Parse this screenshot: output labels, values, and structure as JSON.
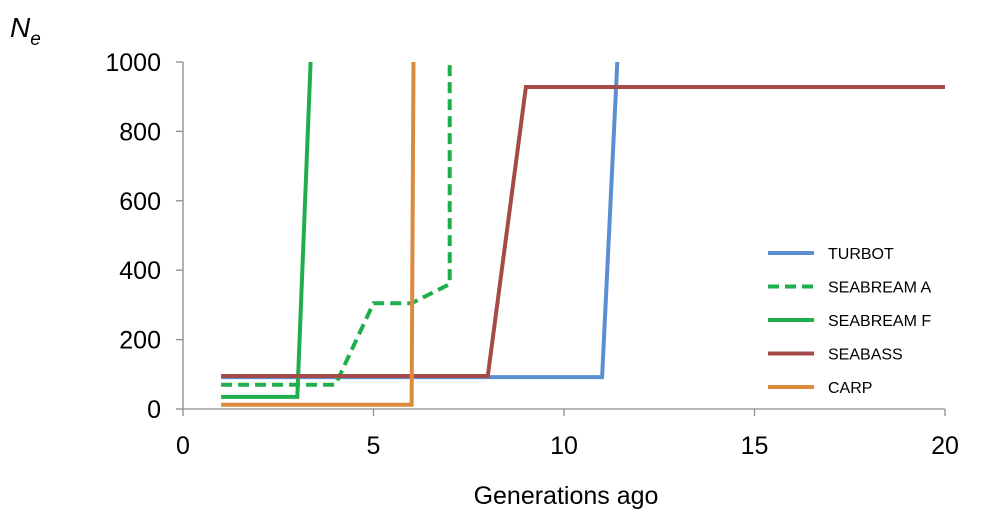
{
  "chart_data": {
    "type": "line",
    "ylabel_main": "N",
    "ylabel_sub": "e",
    "xlabel": "Generations ago",
    "xlim": [
      0,
      20
    ],
    "ylim": [
      0,
      1000
    ],
    "xticks": [
      0,
      5,
      10,
      15,
      20
    ],
    "yticks": [
      0,
      200,
      400,
      600,
      800,
      1000
    ],
    "grid": false,
    "legend_position": "right",
    "series": [
      {
        "name": "TURBOT",
        "color": "#5b8fd1",
        "dashed": false,
        "points": [
          [
            1,
            92
          ],
          [
            11,
            92
          ],
          [
            11.4,
            1000
          ]
        ]
      },
      {
        "name": "SEABREAM A",
        "color": "#1fae4c",
        "dashed": true,
        "points": [
          [
            1,
            70
          ],
          [
            4,
            70
          ],
          [
            5,
            305
          ],
          [
            6,
            305
          ],
          [
            7,
            360
          ],
          [
            7,
            1000
          ]
        ]
      },
      {
        "name": "SEABREAM F",
        "color": "#1fae4c",
        "dashed": false,
        "points": [
          [
            1,
            35
          ],
          [
            3,
            35
          ],
          [
            3.35,
            1000
          ]
        ]
      },
      {
        "name": "SEABASS",
        "color": "#a54a47",
        "dashed": false,
        "points": [
          [
            1,
            95
          ],
          [
            8,
            95
          ],
          [
            9,
            928
          ],
          [
            20,
            928
          ]
        ]
      },
      {
        "name": "CARP",
        "color": "#dc8a3c",
        "dashed": false,
        "points": [
          [
            1,
            12
          ],
          [
            6,
            12
          ],
          [
            6.05,
            1000
          ]
        ]
      }
    ]
  }
}
